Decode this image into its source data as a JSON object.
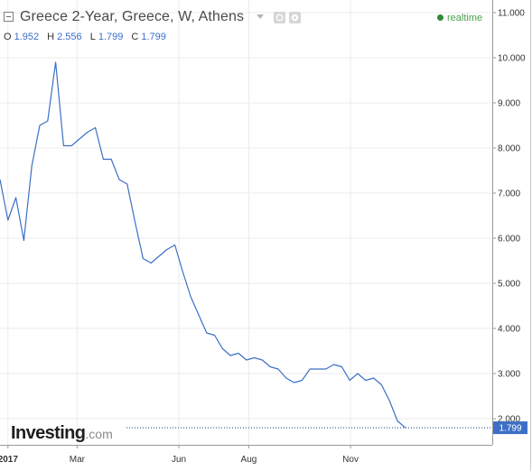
{
  "header": {
    "title": "Greece 2-Year, Greece, W, Athens",
    "status": "realtime",
    "ohlc": [
      {
        "key": "O",
        "value": "1.952"
      },
      {
        "key": "H",
        "value": "2.556"
      },
      {
        "key": "L",
        "value": "1.799"
      },
      {
        "key": "C",
        "value": "1.799"
      }
    ]
  },
  "branding": {
    "name": "Investing",
    "suffix": ".com"
  },
  "colors": {
    "line": "#3d6fc6",
    "last_price_badge": "#3d6fc6",
    "axis": "#9a9a9a",
    "grid": "#ebebeb",
    "realtime_dot": "#2e8b3a"
  },
  "icons": [
    "collapse-toggle-icon",
    "dropdown-caret-icon",
    "settings-icon",
    "gear-icon"
  ],
  "chart_data": {
    "type": "line",
    "title": "Greece 2-Year, Greece, W, Athens",
    "xlabel": "",
    "ylabel": "",
    "ylim": [
      1.65,
      11.1
    ],
    "y_ticks": [
      "11.000",
      "10.000",
      "9.000",
      "8.000",
      "7.000",
      "6.000",
      "5.000",
      "4.000",
      "3.000",
      "2.000"
    ],
    "y_tick_values": [
      11,
      10,
      9,
      8,
      7,
      6,
      5,
      4,
      3,
      2
    ],
    "x_ticks": [
      {
        "label": "2017",
        "index": 1
      },
      {
        "label": "Mar",
        "index": 9.7
      },
      {
        "label": "Jun",
        "index": 22.5
      },
      {
        "label": "Aug",
        "index": 31.3
      },
      {
        "label": "Nov",
        "index": 44.1
      }
    ],
    "grid": true,
    "last_price": {
      "label": "1.799",
      "value": 1.799
    },
    "series": [
      {
        "values": [
          7.3,
          6.4,
          6.9,
          5.95,
          7.6,
          8.5,
          8.6,
          9.9,
          8.05,
          8.05,
          8.2,
          8.35,
          8.45,
          7.75,
          7.75,
          7.3,
          7.2,
          6.35,
          5.55,
          5.45,
          5.6,
          5.75,
          5.85,
          5.25,
          4.7,
          4.3,
          3.9,
          3.85,
          3.55,
          3.4,
          3.45,
          3.3,
          3.35,
          3.3,
          3.15,
          3.1,
          2.9,
          2.8,
          2.85,
          3.1,
          3.1,
          3.1,
          3.2,
          3.15,
          2.85,
          3.0,
          2.85,
          2.9,
          2.75,
          2.4,
          1.95,
          1.799
        ]
      }
    ]
  }
}
